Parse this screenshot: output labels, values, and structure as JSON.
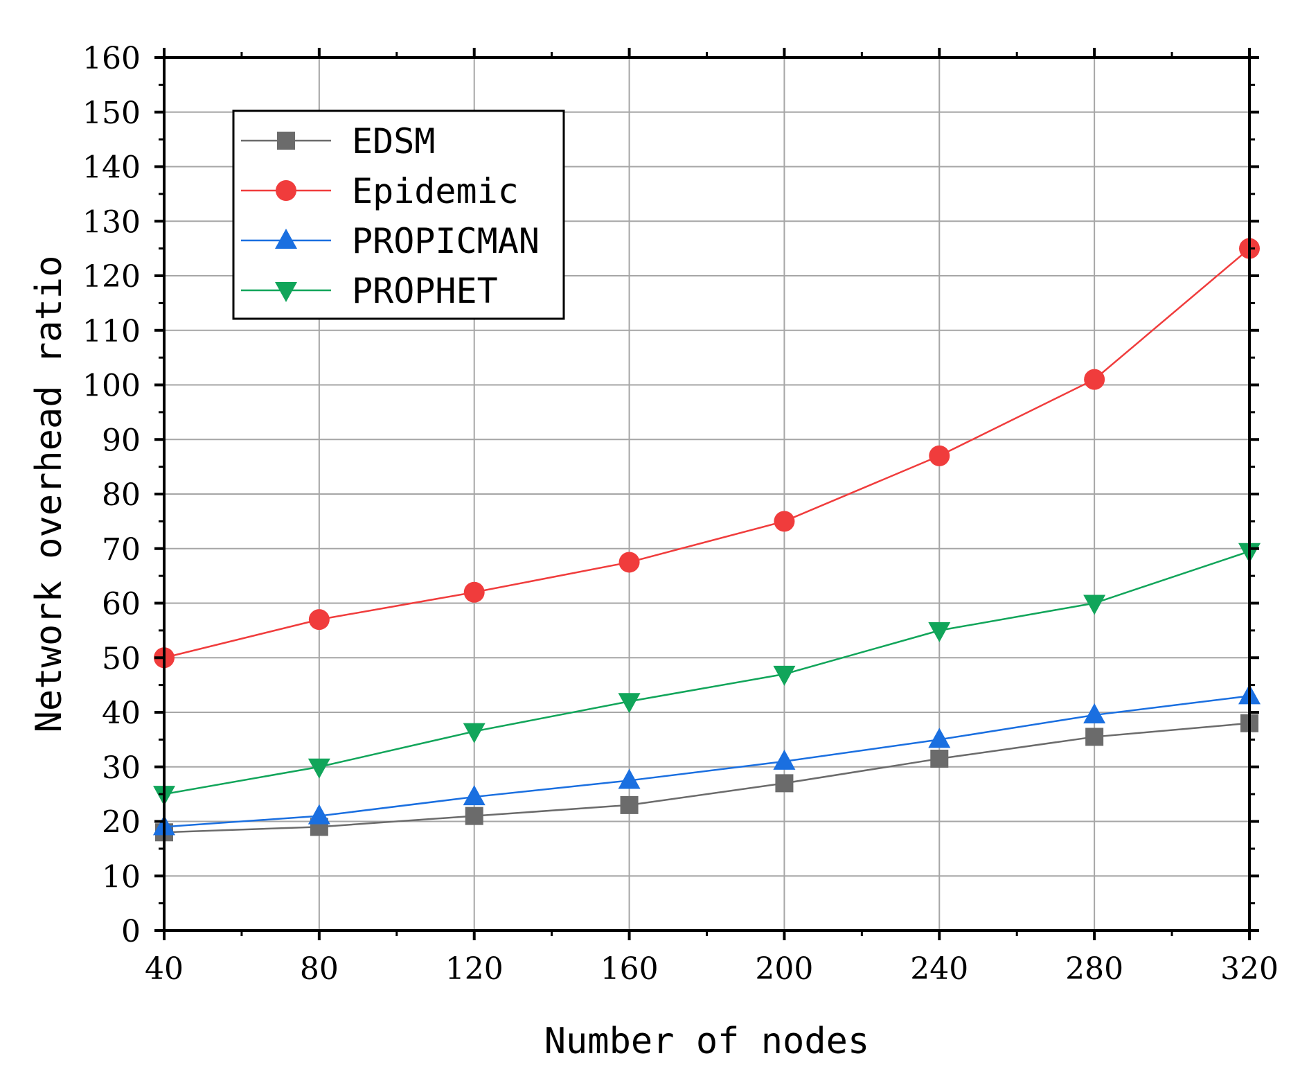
{
  "chart_data": {
    "type": "line",
    "title": "",
    "xlabel": "Number of nodes",
    "ylabel": "Network overhead ratio",
    "x": [
      40,
      80,
      120,
      160,
      200,
      240,
      280,
      320
    ],
    "xlim": [
      40,
      320
    ],
    "ylim": [
      0,
      160
    ],
    "x_ticks": [
      40,
      80,
      120,
      160,
      200,
      240,
      280,
      320
    ],
    "y_ticks": [
      0,
      10,
      20,
      30,
      40,
      50,
      60,
      70,
      80,
      90,
      100,
      110,
      120,
      130,
      140,
      150,
      160
    ],
    "grid": true,
    "legend_position": "top-left",
    "series": [
      {
        "name": "EDSM",
        "color": "#6b6b6b",
        "marker": "square",
        "values": [
          18,
          19,
          21,
          23,
          27,
          31.5,
          35.5,
          38
        ]
      },
      {
        "name": "Epidemic",
        "color": "#f03c3c",
        "marker": "circle",
        "values": [
          50,
          57,
          62,
          67.5,
          75,
          87,
          101,
          125
        ]
      },
      {
        "name": "PROPICMAN",
        "color": "#1a6fe0",
        "marker": "triangle-up",
        "values": [
          19,
          21,
          24.5,
          27.5,
          31,
          35,
          39.5,
          43
        ]
      },
      {
        "name": "PROPHET",
        "color": "#11a55a",
        "marker": "triangle-down",
        "values": [
          25,
          30,
          36.5,
          42,
          47,
          55,
          60,
          69.5
        ]
      }
    ]
  }
}
